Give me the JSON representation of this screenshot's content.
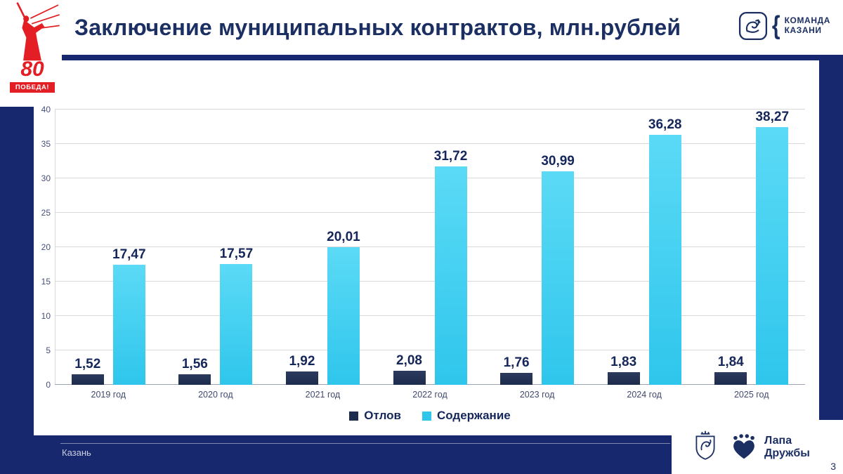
{
  "slide": {
    "title": "Заключение муниципальных контрактов, млн.рублей",
    "page_number": "3",
    "footer_city": "Казань"
  },
  "logos": {
    "komanda": {
      "line1": "КОМАНДА",
      "line2": "КАЗАНИ",
      "bracket": "{"
    },
    "lapa": {
      "line1": "Лапа",
      "line2": "Дружбы"
    },
    "victory": {
      "number": "80",
      "banner": "ПОБЕДА!"
    }
  },
  "colors": {
    "slide_background": "#18286e",
    "title_navy": "#1b2f63",
    "bar_dark": "#1d2b4c",
    "bar_cyan": "#2fc6ec",
    "victory_red": "#e31e24",
    "gridline_gray": "#d9d9d9"
  },
  "chart_data": {
    "type": "bar",
    "title": "Заключение муниципальных контрактов, млн.рублей",
    "categories": [
      "2019 год",
      "2020 год",
      "2021 год",
      "2022 год",
      "2023 год",
      "2024 год",
      "2025 год"
    ],
    "series": [
      {
        "name": "Отлов",
        "color": "#1d2b4c",
        "color_top": "#2b3a5e",
        "values": [
          1.52,
          1.56,
          1.92,
          2.08,
          1.76,
          1.83,
          1.84
        ],
        "labels": [
          "1,52",
          "1,56",
          "1,92",
          "2,08",
          "1,76",
          "1,83",
          "1,84"
        ]
      },
      {
        "name": "Содержание",
        "color": "#2fc6ec",
        "color_top": "#5bdaf6",
        "values": [
          17.47,
          17.57,
          20.01,
          31.72,
          30.99,
          36.28,
          38.27
        ],
        "labels": [
          "17,47",
          "17,57",
          "20,01",
          "31,72",
          "30,99",
          "36,28",
          "38,27"
        ]
      }
    ],
    "ylim": [
      0,
      40
    ],
    "yticks": [
      0,
      5,
      10,
      15,
      20,
      25,
      30,
      35,
      40
    ],
    "grid": true,
    "legend_position": "bottom"
  }
}
